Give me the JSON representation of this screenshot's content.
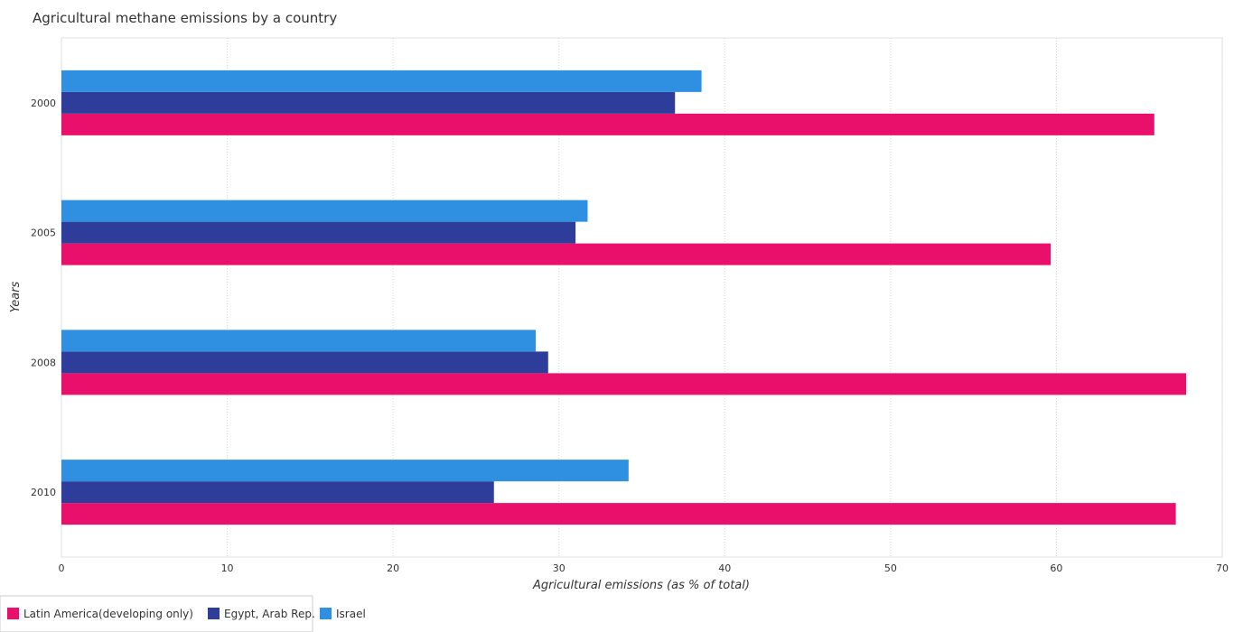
{
  "chart_data": {
    "type": "bar",
    "orientation": "horizontal",
    "title": "Agricultural methane emissions by a country",
    "xlabel": "Agricultural emissions (as % of total)",
    "ylabel": "Years",
    "categories": [
      "2000",
      "2005",
      "2008",
      "2010"
    ],
    "xlim": [
      0,
      70
    ],
    "xticks": [
      "0",
      "10",
      "20",
      "30",
      "40",
      "50",
      "60",
      "70"
    ],
    "grid": true,
    "legend_position": "bottom-left",
    "series": [
      {
        "name": "Latin America(developing only)",
        "color": "#e8106a",
        "values": [
          65.9,
          59.65,
          67.82,
          67.2
        ]
      },
      {
        "name": "Egypt, Arab Rep.",
        "color": "#2f3d9a",
        "values": [
          37.0,
          31.0,
          29.35,
          26.08
        ]
      },
      {
        "name": "Israel",
        "color": "#2f8fe0",
        "values": [
          38.6,
          31.73,
          28.6,
          34.2
        ]
      }
    ]
  }
}
